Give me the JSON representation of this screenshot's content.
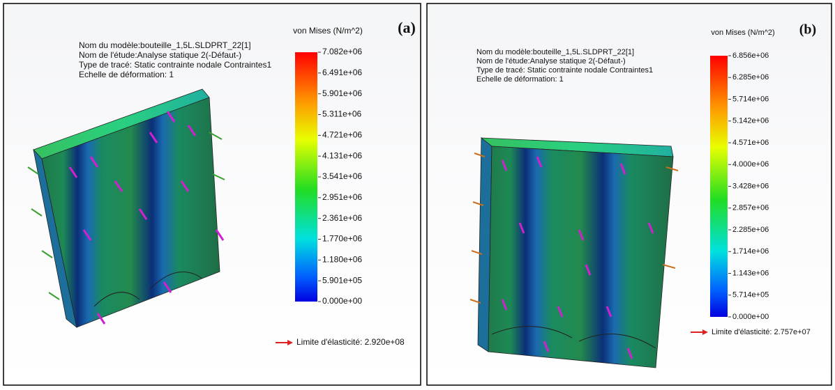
{
  "panels": [
    {
      "label": "(a)",
      "info": [
        "Nom du modèle:bouteille_1,5L.SLDPRT_22[1]",
        "Nom de l'étude:Analyse statique 2(-Défaut-)",
        "Type de tracé: Static contrainte nodale Contraintes1",
        "Echelle de déformation: 1"
      ],
      "legend": {
        "title": "von Mises (N/m^2)",
        "ticks": [
          "7.082e+06",
          "6.491e+06",
          "5.901e+06",
          "5.311e+06",
          "4.721e+06",
          "4.131e+06",
          "3.541e+06",
          "2.951e+06",
          "2.361e+06",
          "1.770e+06",
          "1.180e+06",
          "5.901e+05",
          "0.000e+00"
        ]
      },
      "yield_limit": "Limite d'élasticité: 2.920e+08"
    },
    {
      "label": "(b)",
      "info": [
        "Nom du modèle:bouteille_1,5L.SLDPRT_22[1]",
        "Nom de l'étude:Analyse statique 2(-Défaut-)",
        "Type de tracé: Static contrainte nodale Contraintes1",
        "Echelle de déformation: 1"
      ],
      "legend": {
        "title": "von Mises (N/m^2)",
        "ticks": [
          "6.856e+06",
          "6.285e+06",
          "5.714e+06",
          "5.142e+06",
          "4.571e+06",
          "4.000e+06",
          "3.428e+06",
          "2.857e+06",
          "2.285e+06",
          "1.714e+06",
          "1.143e+06",
          "5.714e+05",
          "0.000e+00"
        ]
      },
      "yield_limit": "Limite d'élasticité: 2.757e+07"
    }
  ]
}
